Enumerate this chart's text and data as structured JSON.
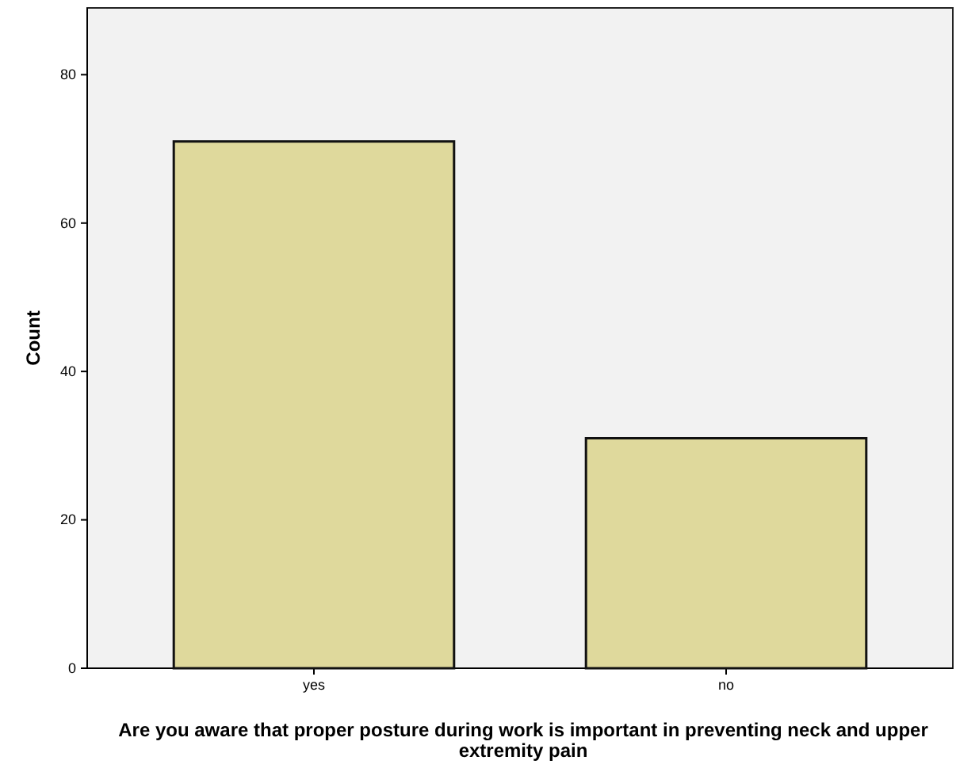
{
  "chart_data": {
    "type": "bar",
    "xlabel": "Are you aware that proper posture during work is important in preventing neck and upper extremity pain",
    "ylabel": "Count",
    "categories": [
      "yes",
      "no"
    ],
    "values": [
      71,
      31
    ],
    "color": "#dfd99c",
    "ylim": [
      0,
      89
    ],
    "yticks": [
      0,
      20,
      40,
      60,
      80
    ],
    "grid": false
  }
}
